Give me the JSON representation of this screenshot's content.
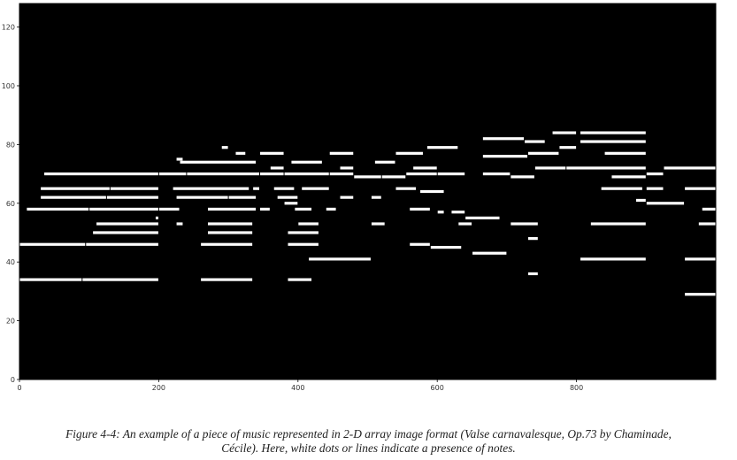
{
  "chart_data": {
    "type": "heatmap",
    "title": "",
    "xlabel": "",
    "ylabel": "",
    "xlim": [
      0,
      1000
    ],
    "ylim": [
      0,
      128
    ],
    "xticks": [
      0,
      200,
      400,
      600,
      800
    ],
    "yticks": [
      0,
      20,
      40,
      60,
      80,
      100,
      120
    ],
    "grid": false,
    "background": "#000000",
    "note_color": "#ffffff",
    "note_segments": [
      [
        0,
        90,
        34
      ],
      [
        90,
        200,
        34
      ],
      [
        260,
        335,
        34
      ],
      [
        385,
        420,
        34
      ],
      [
        415,
        505,
        41
      ],
      [
        730,
        745,
        36
      ],
      [
        805,
        900,
        41
      ],
      [
        955,
        1000,
        41
      ],
      [
        955,
        1000,
        29
      ],
      [
        0,
        95,
        46
      ],
      [
        95,
        200,
        46
      ],
      [
        260,
        335,
        46
      ],
      [
        385,
        430,
        46
      ],
      [
        560,
        590,
        46
      ],
      [
        650,
        700,
        43
      ],
      [
        590,
        635,
        45
      ],
      [
        105,
        200,
        50
      ],
      [
        110,
        200,
        53
      ],
      [
        270,
        335,
        50
      ],
      [
        270,
        335,
        53
      ],
      [
        385,
        430,
        50
      ],
      [
        400,
        430,
        53
      ],
      [
        505,
        525,
        53
      ],
      [
        630,
        650,
        53
      ],
      [
        705,
        745,
        53
      ],
      [
        730,
        745,
        48
      ],
      [
        820,
        900,
        53
      ],
      [
        975,
        1000,
        53
      ],
      [
        195,
        200,
        55
      ],
      [
        225,
        235,
        53
      ],
      [
        10,
        100,
        58
      ],
      [
        100,
        200,
        58
      ],
      [
        200,
        230,
        58
      ],
      [
        270,
        340,
        58
      ],
      [
        345,
        360,
        58
      ],
      [
        395,
        420,
        58
      ],
      [
        440,
        455,
        58
      ],
      [
        560,
        590,
        58
      ],
      [
        600,
        610,
        57
      ],
      [
        620,
        640,
        57
      ],
      [
        640,
        690,
        55
      ],
      [
        885,
        900,
        61
      ],
      [
        900,
        955,
        60
      ],
      [
        980,
        1000,
        58
      ],
      [
        30,
        125,
        62
      ],
      [
        125,
        200,
        62
      ],
      [
        225,
        300,
        62
      ],
      [
        300,
        340,
        62
      ],
      [
        370,
        400,
        62
      ],
      [
        460,
        480,
        62
      ],
      [
        505,
        520,
        62
      ],
      [
        380,
        400,
        60
      ],
      [
        30,
        130,
        65
      ],
      [
        130,
        200,
        65
      ],
      [
        220,
        330,
        65
      ],
      [
        335,
        345,
        65
      ],
      [
        365,
        395,
        65
      ],
      [
        405,
        445,
        65
      ],
      [
        540,
        570,
        65
      ],
      [
        575,
        610,
        64
      ],
      [
        835,
        895,
        65
      ],
      [
        900,
        925,
        65
      ],
      [
        955,
        1000,
        65
      ],
      [
        35,
        200,
        70
      ],
      [
        200,
        240,
        70
      ],
      [
        240,
        345,
        70
      ],
      [
        345,
        380,
        70
      ],
      [
        380,
        445,
        70
      ],
      [
        445,
        480,
        70
      ],
      [
        480,
        520,
        69
      ],
      [
        520,
        555,
        69
      ],
      [
        555,
        600,
        70
      ],
      [
        600,
        640,
        70
      ],
      [
        665,
        705,
        70
      ],
      [
        705,
        740,
        69
      ],
      [
        740,
        785,
        72
      ],
      [
        785,
        900,
        72
      ],
      [
        900,
        925,
        70
      ],
      [
        925,
        1000,
        72
      ],
      [
        230,
        340,
        74
      ],
      [
        360,
        380,
        72
      ],
      [
        390,
        435,
        74
      ],
      [
        460,
        480,
        72
      ],
      [
        510,
        540,
        74
      ],
      [
        565,
        600,
        72
      ],
      [
        665,
        730,
        76
      ],
      [
        730,
        775,
        77
      ],
      [
        775,
        800,
        79
      ],
      [
        805,
        900,
        81
      ],
      [
        805,
        900,
        84
      ],
      [
        765,
        800,
        84
      ],
      [
        665,
        725,
        82
      ],
      [
        725,
        755,
        81
      ],
      [
        585,
        630,
        79
      ],
      [
        540,
        580,
        77
      ],
      [
        445,
        480,
        77
      ],
      [
        345,
        380,
        77
      ],
      [
        310,
        325,
        77
      ],
      [
        290,
        300,
        79
      ],
      [
        225,
        235,
        75
      ],
      [
        840,
        900,
        77
      ],
      [
        850,
        900,
        69
      ]
    ]
  },
  "caption": {
    "line1": "Figure 4-4: An example of a piece of music represented in 2-D array image format (Valse carnavalesque, Op.73 by Chaminade,",
    "line2": "Cécile). Here, white dots or lines indicate a presence of notes."
  }
}
